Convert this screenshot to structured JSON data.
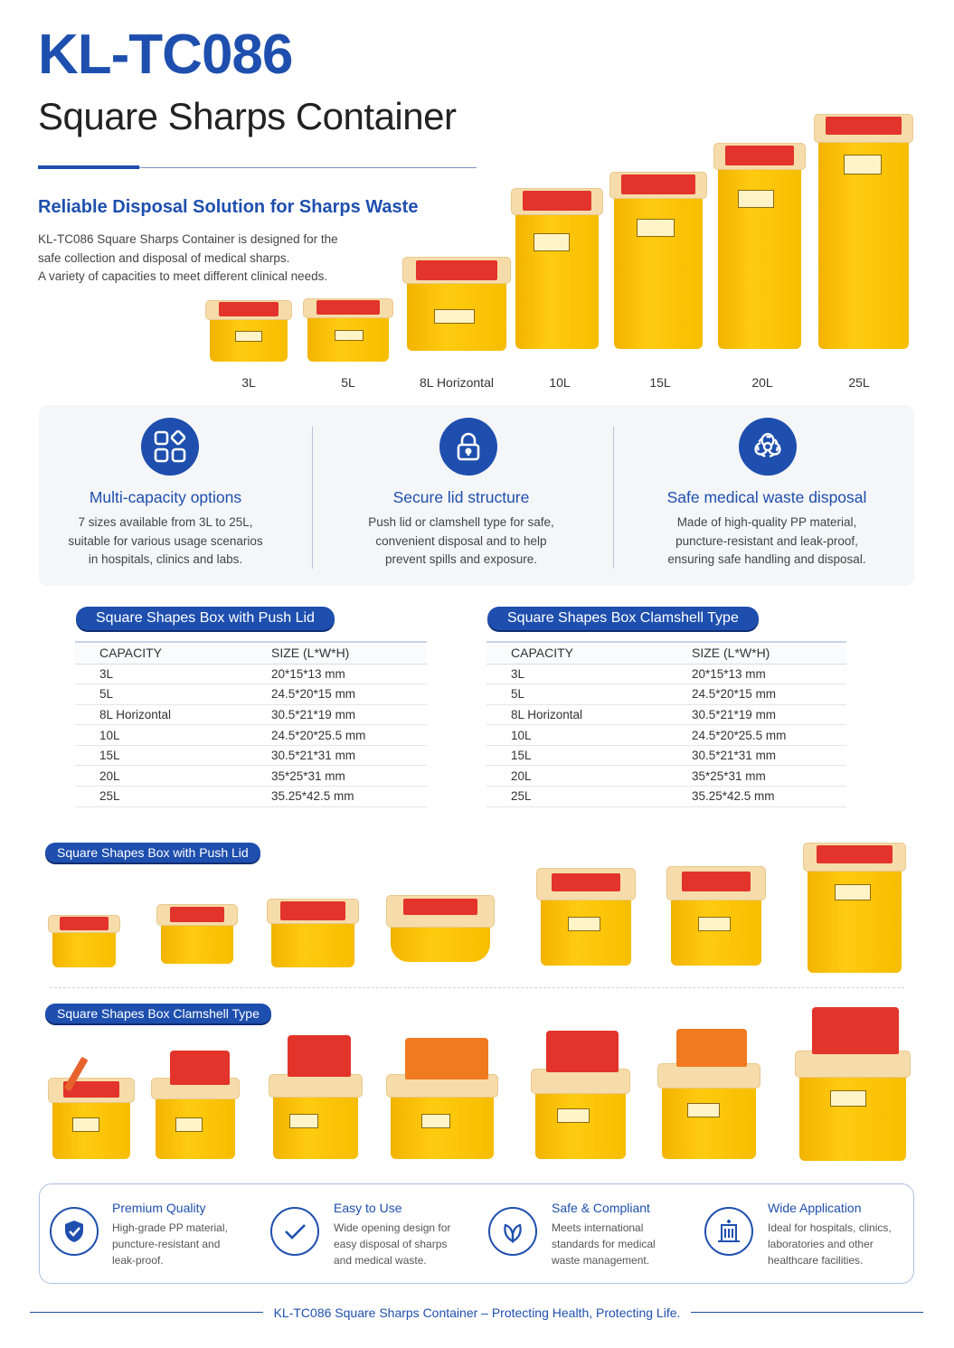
{
  "header": {
    "model": "KL-TC086",
    "title": "Square Sharps Container",
    "tagline": "Reliable Disposal Solution for Sharps Waste",
    "intro_lines": [
      "KL-TC086 Square Sharps Container is designed for the",
      "safe collection and disposal of medical sharps.",
      "A variety of capacities to meet different clinical needs."
    ]
  },
  "capacities": [
    "3L",
    "5L",
    "8L Horizontal",
    "10L",
    "15L",
    "20L",
    "25L"
  ],
  "features": [
    {
      "icon": "grid-icon",
      "title": "Multi-capacity options",
      "lines": [
        "7 sizes available from 3L to 25L,",
        "suitable for various usage scenarios",
        "in hospitals, clinics and labs."
      ]
    },
    {
      "icon": "lock-icon",
      "title": "Secure lid structure",
      "lines": [
        "Push lid or clamshell type for safe,",
        "convenient disposal and to help",
        "prevent spills and exposure."
      ]
    },
    {
      "icon": "biohazard-icon",
      "title": "Safe medical waste disposal",
      "lines": [
        "Made of high-quality PP material,",
        "puncture-resistant and leak-proof,",
        "ensuring safe handling and disposal."
      ]
    }
  ],
  "tables": [
    {
      "title": "Square Shapes Box with Push Lid",
      "headers": [
        "CAPACITY",
        "SIZE (L*W*H)"
      ],
      "rows": [
        [
          "3L",
          "20*15*13 mm"
        ],
        [
          "5L",
          "24.5*20*15 mm"
        ],
        [
          "8L Horizontal",
          "30.5*21*19 mm"
        ],
        [
          "10L",
          "24.5*20*25.5 mm"
        ],
        [
          "15L",
          "30.5*21*31 mm"
        ],
        [
          "20L",
          "35*25*31 mm"
        ],
        [
          "25L",
          "35.25*42.5 mm"
        ]
      ]
    },
    {
      "title": "Square Shapes Box Clamshell Type",
      "headers": [
        "CAPACITY",
        "SIZE (L*W*H)"
      ],
      "rows": [
        [
          "3L",
          "20*15*13 mm"
        ],
        [
          "5L",
          "24.5*20*15 mm"
        ],
        [
          "8L Horizontal",
          "30.5*21*19 mm"
        ],
        [
          "10L",
          "24.5*20*25.5 mm"
        ],
        [
          "15L",
          "30.5*21*31 mm"
        ],
        [
          "20L",
          "35*25*31 mm"
        ],
        [
          "25L",
          "35.25*42.5 mm"
        ]
      ]
    }
  ],
  "galleries": {
    "push_lid_label": "Square Shapes Box with Push Lid",
    "clamshell_label": "Square Shapes Box Clamshell Type"
  },
  "benefits": [
    {
      "icon": "shield-check-icon",
      "title": "Premium Quality",
      "lines": [
        "High-grade PP material,",
        "puncture-resistant and",
        "leak-proof."
      ]
    },
    {
      "icon": "checkmark-icon",
      "title": "Easy to Use",
      "lines": [
        "Wide opening design for",
        "easy disposal of sharps",
        "and medical waste."
      ]
    },
    {
      "icon": "leaf-icon",
      "title": "Safe & Compliant",
      "lines": [
        "Meets international",
        "standards for medical",
        "waste management."
      ]
    },
    {
      "icon": "hospital-icon",
      "title": "Wide Application",
      "lines": [
        "Ideal for hospitals, clinics,",
        "laboratories and other",
        "healthcare facilities."
      ]
    }
  ],
  "footer": "KL-TC086 Square Sharps Container – Protecting Health, Protecting Life.",
  "colors": {
    "brand": "#1e4fae",
    "container": "#ffc400",
    "lid": "#e2342a",
    "orange_lid": "#f07a20"
  }
}
